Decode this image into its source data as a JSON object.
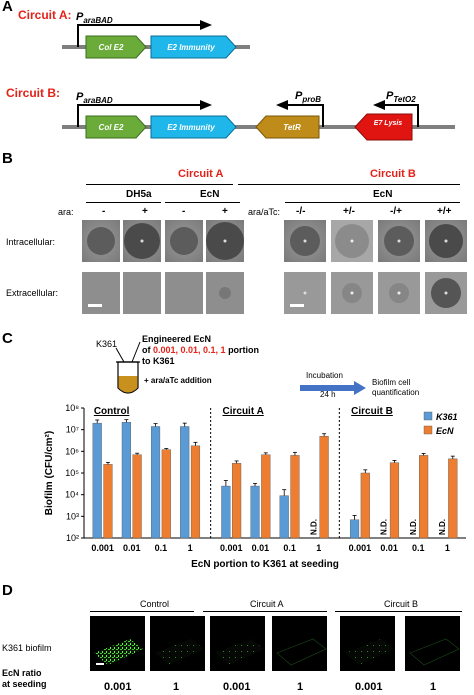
{
  "panelA": {
    "label": "A",
    "circuitA": {
      "label": "Circuit A:",
      "promoter": "araBAD",
      "genes": [
        "Col E2",
        "E2 Immunity"
      ]
    },
    "circuitB": {
      "label": "Circuit B:",
      "promoter": "araBAD",
      "promoter2": "proB",
      "promoter3": "TetO2",
      "genes": [
        "Col E2",
        "E2 Immunity",
        "TetR",
        "E7 Lysis"
      ]
    },
    "colors": {
      "colE2": "#6aab3a",
      "immunity": "#1fb6ea",
      "tetr": "#bf8c1a",
      "lysis": "#e01512",
      "backbone": "#7f7f7f"
    }
  },
  "panelB": {
    "label": "B",
    "circuitA_title": "Circuit A",
    "circuitB_title": "Circuit B",
    "strainA1": "DH5a",
    "strainA2": "EcN",
    "strainB": "EcN",
    "row_label_ara": "ara:",
    "row_label_ara_atc": "ara/aTc:",
    "ara_values": [
      "-",
      "+",
      "-",
      "+"
    ],
    "ara_atc_values": [
      "-/-",
      "+/-",
      "-/+",
      "+/+"
    ],
    "row1": "Intracellular:",
    "row2": "Extracellular:"
  },
  "panelC": {
    "label": "C",
    "k361": "K361",
    "engineered_line1": "Engineered EcN",
    "engineered_of": "of ",
    "engineered_values": "0.001, 0.01, 0.1, 1",
    "engineered_line2_end": " portion",
    "engineered_line3": "to K361",
    "addition": "+ ara/aTc addition",
    "incubation": "Incubation",
    "incubation_time": "24 h",
    "outcome_line1": "Biofilm cell",
    "outcome_line2": "quantification"
  },
  "chart_data": {
    "type": "bar",
    "ylabel": "Biofilm (CFU/cm²)",
    "xlabel": "EcN portion to K361 at seeding",
    "yscale": "log",
    "ylim": [
      100,
      100000000
    ],
    "yticks": [
      "10²",
      "10³",
      "10⁴",
      "10⁵",
      "10⁶",
      "10⁷",
      "10⁸"
    ],
    "groups": [
      "Control",
      "Circuit A",
      "Circuit B"
    ],
    "categories": [
      "0.001",
      "0.01",
      "0.1",
      "1",
      "0.001",
      "0.01",
      "0.1",
      "1",
      "0.001",
      "0.01",
      "0.1",
      "1"
    ],
    "nd_label": "N.D.",
    "series": [
      {
        "name": "K361",
        "color": "#5b9bd5",
        "values": [
          20000000,
          22000000,
          14000000,
          14000000,
          25000,
          25000,
          9000,
          null,
          700,
          null,
          null,
          null
        ],
        "errors": [
          8000000,
          7000000,
          5000000,
          6000000,
          20000,
          8000,
          8000,
          0,
          400,
          0,
          0,
          0
        ]
      },
      {
        "name": "EcN",
        "color": "#ed7d31",
        "values": [
          250000,
          700000,
          1200000,
          1800000,
          280000,
          700000,
          650000,
          5000000,
          100000,
          300000,
          650000,
          450000
        ],
        "errors": [
          60000,
          120000,
          150000,
          800000,
          80000,
          150000,
          250000,
          1500000,
          40000,
          80000,
          150000,
          150000
        ]
      }
    ]
  },
  "panelD": {
    "label": "D",
    "groups": [
      "Control",
      "Circuit A",
      "Circuit B"
    ],
    "row_label": "K361 biofilm",
    "ratio_label_line1": "EcN ratio",
    "ratio_label_line2": "at seeding",
    "ratios": [
      "0.001",
      "1",
      "0.001",
      "1",
      "0.001",
      "1"
    ]
  }
}
